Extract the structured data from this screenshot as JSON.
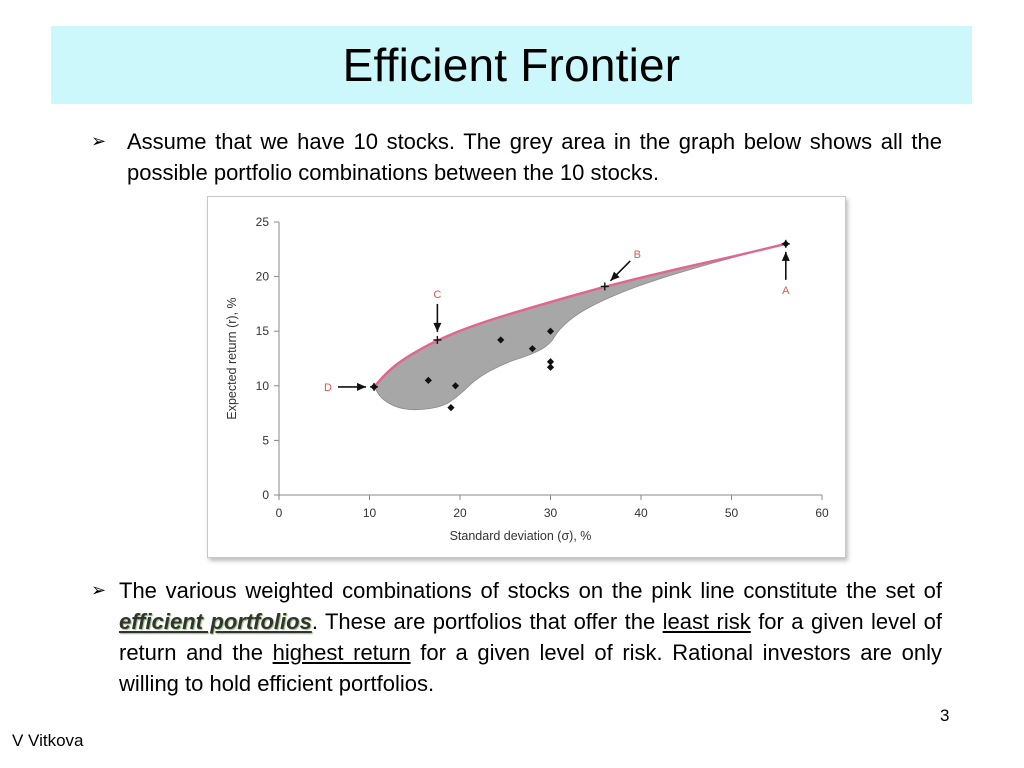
{
  "slide": {
    "title": "Efficient Frontier",
    "bullets": [
      {
        "text": "Assume that we have 10 stocks. The grey area in the graph below shows all the possible portfolio combinations between the 10 stocks."
      },
      {
        "before": "The various weighted combinations of stocks on the pink line constitute the set of ",
        "term": "efficient portfolios",
        "mid1": ". These are portfolios that offer the ",
        "least_risk": "least risk",
        "mid2": " for a given level of return and the ",
        "highest_return": "highest return",
        "after": " for a given level of risk. Rational investors are only willing to hold efficient portfolios."
      }
    ],
    "bullet_glyph": "➢",
    "slide_number": "3",
    "author": "V Vitkova"
  },
  "chart_data": {
    "type": "scatter",
    "xlabel": "Standard deviation (σ), %",
    "ylabel": "Expected return (r), %",
    "xlim": [
      0,
      60
    ],
    "ylim": [
      0,
      25
    ],
    "x_ticks": [
      0,
      10,
      20,
      30,
      40,
      50,
      60
    ],
    "y_ticks": [
      0,
      5,
      10,
      15,
      20,
      25
    ],
    "grid": false,
    "stocks": [
      {
        "x": 56,
        "y": 23
      },
      {
        "x": 16.5,
        "y": 10.5
      },
      {
        "x": 19,
        "y": 8
      },
      {
        "x": 19.5,
        "y": 10
      },
      {
        "x": 24.5,
        "y": 14.2
      },
      {
        "x": 28,
        "y": 13.4
      },
      {
        "x": 30,
        "y": 15
      },
      {
        "x": 30,
        "y": 12.2
      },
      {
        "x": 30,
        "y": 11.7
      },
      {
        "x": 10.5,
        "y": 9.9
      }
    ],
    "frontier": [
      [
        10.5,
        9.9
      ],
      [
        12,
        11.3
      ],
      [
        14,
        12.6
      ],
      [
        17.5,
        14.2
      ],
      [
        22,
        15.7
      ],
      [
        28,
        17.2
      ],
      [
        36,
        19.1
      ],
      [
        44,
        20.7
      ],
      [
        50,
        21.8
      ],
      [
        56,
        23
      ]
    ],
    "feasible_lower_edge": [
      [
        56,
        23
      ],
      [
        48,
        21.3
      ],
      [
        40,
        19.3
      ],
      [
        34,
        17.2
      ],
      [
        31,
        15.3
      ],
      [
        30,
        13.8
      ],
      [
        28,
        12.9
      ],
      [
        25,
        12.1
      ],
      [
        22,
        10.8
      ],
      [
        20,
        9.2
      ],
      [
        18,
        8
      ],
      [
        14,
        7.7
      ],
      [
        11.5,
        8.6
      ],
      [
        10.5,
        9.9
      ]
    ],
    "labeled_portfolios": [
      {
        "label": "A",
        "x": 56,
        "y": 23
      },
      {
        "label": "B",
        "x": 36,
        "y": 19.1
      },
      {
        "label": "C",
        "x": 17.5,
        "y": 14.2
      },
      {
        "label": "D",
        "x": 10.5,
        "y": 9.9
      }
    ],
    "colors": {
      "feasible_area": "#a7a7a7",
      "frontier": "#e0668f",
      "label": "#e2574c",
      "axis": "#888888"
    }
  }
}
